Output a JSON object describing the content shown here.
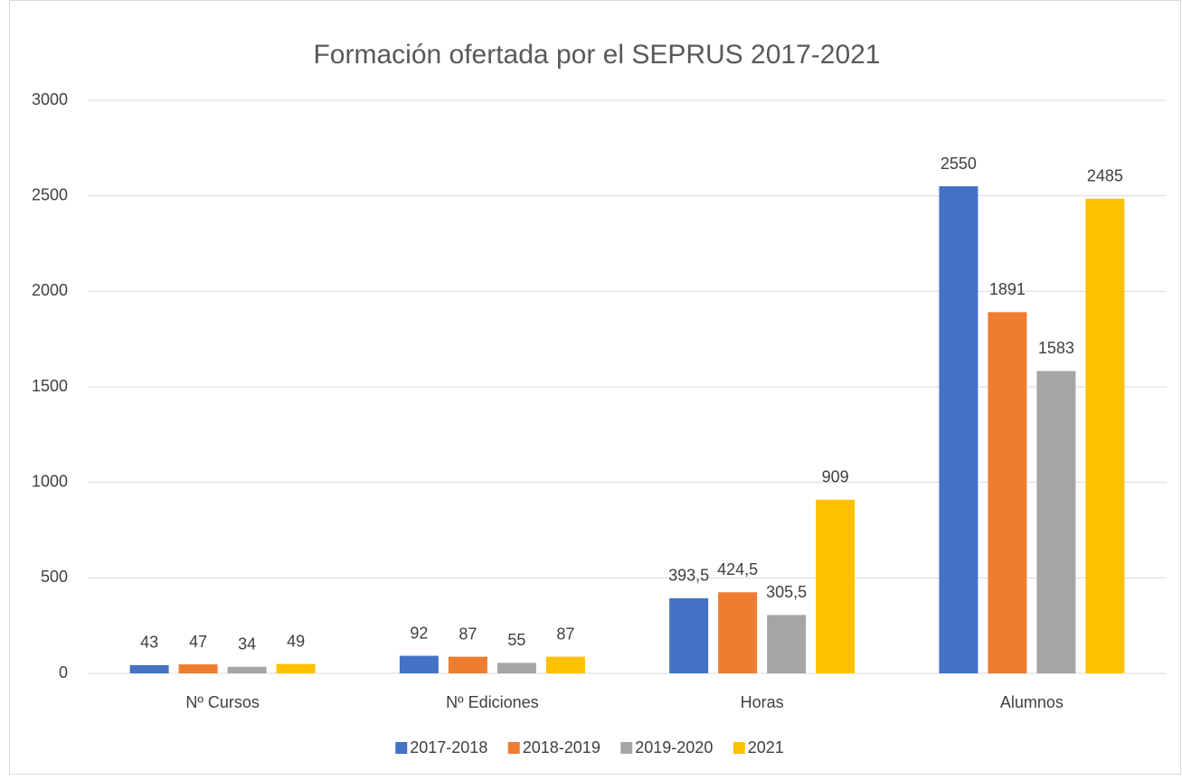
{
  "chart_data": {
    "type": "bar",
    "title": "Formación ofertada por el SEPRUS 2017-2021",
    "categories": [
      "Nº Cursos",
      "Nº Ediciones",
      "Horas",
      "Alumnos"
    ],
    "series": [
      {
        "name": "2017-2018",
        "color": "#4472c4",
        "values": [
          43,
          92,
          393.5,
          2550
        ],
        "value_labels": [
          "43",
          "92",
          "393,5",
          "2550"
        ]
      },
      {
        "name": "2018-2019",
        "color": "#ed7d31",
        "values": [
          47,
          87,
          424.5,
          1891
        ],
        "value_labels": [
          "47",
          "87",
          "424,5",
          "1891"
        ]
      },
      {
        "name": "2019-2020",
        "color": "#a5a5a5",
        "values": [
          34,
          55,
          305.5,
          1583
        ],
        "value_labels": [
          "34",
          "55",
          "305,5",
          "1583"
        ]
      },
      {
        "name": "2021",
        "color": "#ffc000",
        "values": [
          49,
          87,
          909,
          2485
        ],
        "value_labels": [
          "49",
          "87",
          "909",
          "2485"
        ]
      }
    ],
    "ylim": [
      0,
      3000
    ],
    "yticks": [
      0,
      500,
      1000,
      1500,
      2000,
      2500,
      3000
    ],
    "grid": true,
    "legend": "bottom"
  }
}
